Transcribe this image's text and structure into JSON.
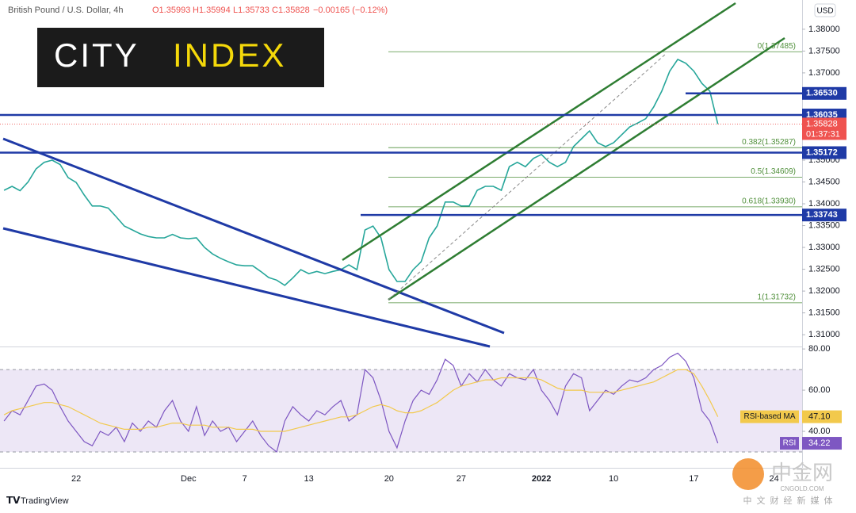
{
  "header": {
    "symbol": "British Pound / U.S. Dollar, 4h",
    "ohlc": [
      "O1.35993",
      "H1.35994",
      "L1.35733",
      "C1.35828",
      "−0.00165 (−0.12%)"
    ],
    "currency": "USD"
  },
  "logo": {
    "city": "CITY",
    "index": "INDEX"
  },
  "footer": {
    "brand": "TradingView",
    "watermark": "中金网",
    "watermark_url": "CNGOLD.COM",
    "watermark_sub": "中文财经新媒体"
  },
  "chart_data": [
    {
      "type": "line",
      "categories": [
        null,
        null,
        null,
        null,
        null,
        null,
        null,
        null,
        null,
        "22",
        null,
        null,
        null,
        null,
        null,
        null,
        null,
        null,
        null,
        null,
        null,
        null,
        null,
        "Dec",
        null,
        null,
        null,
        null,
        null,
        null,
        "7",
        null,
        null,
        null,
        null,
        null,
        null,
        null,
        "13",
        null,
        null,
        null,
        null,
        null,
        null,
        null,
        null,
        null,
        "20",
        null,
        null,
        null,
        null,
        null,
        null,
        null,
        null,
        "27",
        null,
        null,
        null,
        null,
        null,
        null,
        null,
        null,
        null,
        "2022",
        null,
        null,
        null,
        null,
        null,
        null,
        null,
        null,
        "10",
        null,
        null,
        null,
        null,
        null,
        null,
        null,
        null,
        null,
        "17",
        null,
        null,
        null,
        null,
        null,
        null,
        null,
        null,
        null,
        "24",
        null,
        null,
        null
      ],
      "series": [
        {
          "color": "#26a69a",
          "values": [
            1.3431,
            1.344,
            1.343,
            1.345,
            1.348,
            1.3495,
            1.35,
            1.349,
            1.346,
            1.3449,
            1.342,
            1.3395,
            1.3395,
            1.339,
            1.337,
            1.3349,
            1.334,
            1.3331,
            1.3325,
            1.3322,
            1.3322,
            1.333,
            1.3322,
            1.332,
            1.3322,
            1.33,
            1.3285,
            1.3275,
            1.3267,
            1.326,
            1.3258,
            1.3258,
            1.3245,
            1.3231,
            1.3225,
            1.3213,
            1.323,
            1.3249,
            1.324,
            1.3245,
            1.324,
            1.3245,
            1.3249,
            1.326,
            1.3249,
            1.334,
            1.3349,
            1.3322,
            1.3249,
            1.3222,
            1.3222,
            1.3249,
            1.3267,
            1.3322,
            1.3349,
            1.3404,
            1.3404,
            1.3395,
            1.3395,
            1.3431,
            1.344,
            1.344,
            1.3431,
            1.3485,
            1.3495,
            1.3485,
            1.3504,
            1.3513,
            1.3495,
            1.3485,
            1.3495,
            1.3531,
            1.3549,
            1.3567,
            1.354,
            1.3531,
            1.354,
            1.3558,
            1.3576,
            1.3585,
            1.3595,
            1.3622,
            1.3658,
            1.3704,
            1.3731,
            1.3722,
            1.3704,
            1.3676,
            1.3658,
            1.35828,
            null,
            null,
            null,
            null,
            null,
            null,
            null,
            null,
            null,
            null
          ]
        }
      ],
      "ylim": [
        1.3073,
        1.3867
      ],
      "yticks": [
        {
          "value": 1.31,
          "label": "1.31000"
        },
        {
          "value": 1.315,
          "label": "1.31500"
        },
        {
          "value": 1.32,
          "label": "1.32000"
        },
        {
          "value": 1.325,
          "label": "1.32500"
        },
        {
          "value": 1.33,
          "label": "1.33000"
        },
        {
          "value": 1.335,
          "label": "1.33500"
        },
        {
          "value": 1.34,
          "label": "1.34000"
        },
        {
          "value": 1.345,
          "label": "1.34500"
        },
        {
          "value": 1.35,
          "label": "1.35000"
        },
        {
          "value": 1.37,
          "label": "1.37000"
        },
        {
          "value": 1.375,
          "label": "1.37500"
        },
        {
          "value": 1.38,
          "label": "1.38000"
        }
      ],
      "levels": [
        {
          "value": 1.3653,
          "label": "1.36530"
        },
        {
          "value": 1.36035,
          "label": "1.36035"
        },
        {
          "value": 1.35172,
          "label": "1.35172"
        },
        {
          "value": 1.33743,
          "label": "1.33743"
        }
      ],
      "level_color": "#1f3aa6",
      "fib": [
        {
          "value": 1.37485,
          "label": "0(1.37485)"
        },
        {
          "value": 1.35287,
          "label": "0.382(1.35287)"
        },
        {
          "value": 1.34609,
          "label": "0.5(1.34609)"
        },
        {
          "value": 1.3393,
          "label": "0.618(1.33930)"
        },
        {
          "value": 1.31732,
          "label": "1(1.31732)"
        }
      ],
      "fib_color": "#4f8f3a",
      "last_price": {
        "value": 1.35828,
        "label": "1.35828",
        "countdown": "01:37:31",
        "color": "#ef5350"
      }
    },
    {
      "type": "line",
      "series": [
        {
          "name": "RSI",
          "color": "#7e57c2",
          "last_label": "34.22",
          "values": [
            45,
            50,
            48,
            55,
            62,
            63,
            60,
            52,
            45,
            40,
            35,
            33,
            40,
            38,
            42,
            35,
            44,
            40,
            45,
            42,
            50,
            55,
            45,
            40,
            52,
            38,
            45,
            40,
            42,
            35,
            40,
            45,
            38,
            33,
            30,
            45,
            52,
            48,
            45,
            50,
            48,
            52,
            55,
            45,
            48,
            70,
            66,
            55,
            40,
            32,
            45,
            55,
            60,
            58,
            65,
            75,
            72,
            62,
            68,
            64,
            70,
            65,
            62,
            68,
            66,
            65,
            70,
            60,
            55,
            48,
            62,
            68,
            66,
            50,
            55,
            60,
            58,
            62,
            65,
            64,
            66,
            70,
            72,
            76,
            78,
            74,
            66,
            50,
            45,
            34.22,
            null,
            null,
            null,
            null,
            null,
            null,
            null,
            null,
            null,
            null
          ]
        },
        {
          "name": "RSI-based MA",
          "color": "#f2c94c",
          "last_label": "47.10",
          "values": [
            48,
            50,
            51,
            52,
            53,
            54,
            54,
            53,
            52,
            50,
            48,
            46,
            44,
            43,
            42,
            41,
            41,
            41,
            42,
            42,
            43,
            44,
            44,
            43,
            43,
            43,
            42,
            42,
            42,
            41,
            41,
            41,
            40,
            40,
            40,
            40,
            41,
            42,
            43,
            44,
            45,
            46,
            47,
            47,
            48,
            50,
            52,
            53,
            52,
            50,
            49,
            49,
            50,
            52,
            54,
            57,
            60,
            62,
            63,
            64,
            65,
            65,
            66,
            66,
            66,
            66,
            66,
            65,
            63,
            61,
            60,
            60,
            60,
            59,
            59,
            59,
            59,
            60,
            61,
            62,
            63,
            64,
            66,
            68,
            70,
            70,
            68,
            62,
            55,
            47.1,
            null,
            null,
            null,
            null,
            null,
            null,
            null,
            null,
            null,
            null
          ]
        }
      ],
      "ylim": [
        22.3,
        81.2
      ],
      "yticks": [
        {
          "value": 40,
          "label": "40.00"
        },
        {
          "value": 60,
          "label": "60.00"
        },
        {
          "value": 80,
          "label": "80.00"
        }
      ],
      "bands": [
        30,
        70
      ],
      "band_color": "#ede7f6"
    }
  ]
}
